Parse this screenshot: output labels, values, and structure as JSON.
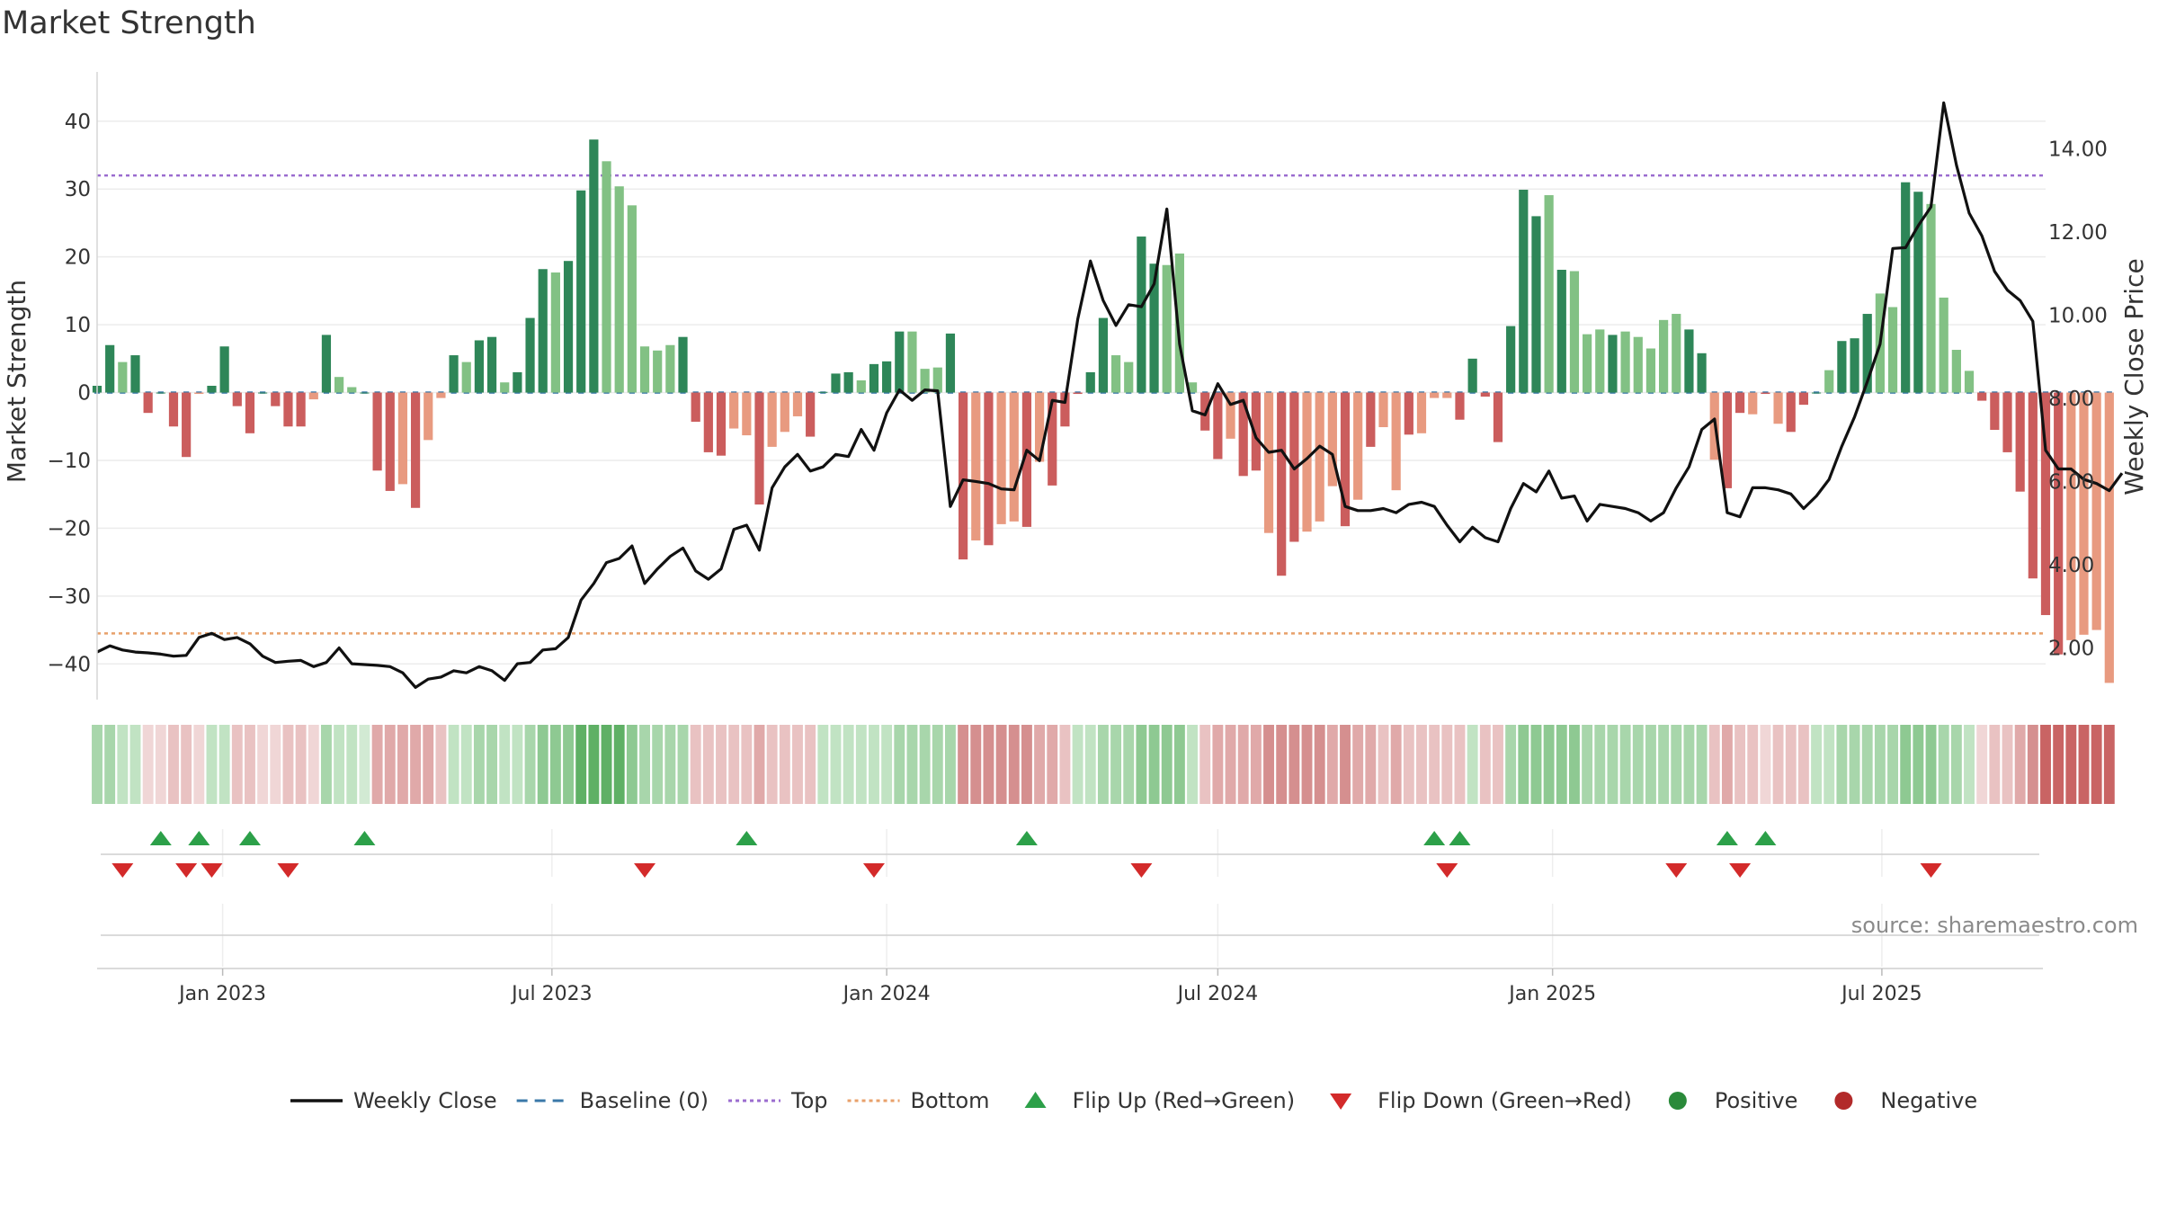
{
  "chart_data": {
    "type": "bar",
    "title": "Market Strength",
    "source": "source: sharemaestro.com",
    "x_type": "time",
    "x_ticks": [
      "Jan 2023",
      "Jul 2023",
      "Jan 2024",
      "Jul 2024",
      "Jan 2025",
      "Jul 2025"
    ],
    "x_tick_dates": [
      "2023-01-01",
      "2023-07-01",
      "2024-01-01",
      "2024-07-01",
      "2025-01-01",
      "2025-07-01"
    ],
    "x_range": [
      "2022-10-24",
      "2025-09-29"
    ],
    "ylabel_left": "Market Strength",
    "ylabel_right": "Weekly Close Price",
    "ylim_left": [
      -45,
      47
    ],
    "ylim_right": [
      0.8,
      15.8
    ],
    "yticks_left": [
      "40",
      "30",
      "20",
      "10",
      "0",
      "−10",
      "−20",
      "−30",
      "−40"
    ],
    "yticks_left_values": [
      40,
      30,
      20,
      10,
      0,
      -10,
      -20,
      -30,
      -40
    ],
    "yticks_right": [
      "14.00",
      "12.00",
      "10.00",
      "8.00",
      "6.00",
      "4.00",
      "2.00"
    ],
    "yticks_right_values": [
      14,
      12,
      10,
      8,
      6,
      4,
      2
    ],
    "grid": true,
    "top_level": 32,
    "bottom_level": -35.5,
    "baseline": 0,
    "week_start": "2022-10-24",
    "strength": [
      1,
      7,
      4.5,
      5.5,
      -3,
      0,
      -5,
      -9.5,
      -0.2,
      1,
      6.8,
      -2,
      -6,
      0,
      -2,
      -5,
      -5,
      -1,
      8.5,
      2.3,
      0.8,
      0,
      -11.5,
      -14.5,
      -13.5,
      -17,
      -7,
      -0.8,
      5.5,
      4.5,
      7.7,
      8.2,
      1.5,
      3,
      11,
      18.2,
      17.7,
      19.4,
      29.8,
      37.3,
      34.1,
      30.4,
      27.6,
      6.8,
      6.2,
      7,
      8.2,
      -4.3,
      -8.8,
      -9.3,
      -5.3,
      -6.3,
      -16.5,
      -8,
      -5.8,
      -3.5,
      -6.5,
      0.1,
      2.8,
      3,
      1.8,
      4.2,
      4.6,
      9,
      9,
      3.5,
      3.7,
      8.7,
      -24.6,
      -21.8,
      -22.5,
      -19.4,
      -19,
      -19.8,
      -10.2,
      -13.7,
      -5,
      -0.2,
      3,
      11,
      5.5,
      4.5,
      23,
      19,
      18.8,
      20.5,
      1.5,
      -5.6,
      -9.8,
      -6.8,
      -12.3,
      -11.5,
      -20.7,
      -27,
      -22,
      -20.5,
      -19,
      -13.8,
      -19.7,
      -15.8,
      -8,
      -5.1,
      -14.4,
      -6.2,
      -6,
      -0.8,
      -0.8,
      -4,
      5,
      -0.6,
      -7.3,
      9.8,
      29.9,
      26,
      29.1,
      18.1,
      17.9,
      8.6,
      9.3,
      8.5,
      9,
      8.2,
      6.5,
      10.7,
      11.6,
      9.3,
      5.8,
      -9.9,
      -14.1,
      -3,
      -3.2,
      -0.2,
      -4.6,
      -5.8,
      -1.8,
      0,
      3.3,
      7.6,
      8,
      11.6,
      14.6,
      12.6,
      31,
      29.6,
      27.8,
      14,
      6.3,
      3.2,
      -1.2,
      -5.5,
      -8.8,
      -14.6,
      -27.4,
      -32.8,
      -38.6,
      -36.5,
      -35.7,
      -35,
      -42.8
    ],
    "close": [
      1.9,
      2.05,
      1.95,
      1.9,
      1.88,
      1.85,
      1.8,
      1.82,
      2.25,
      2.35,
      2.2,
      2.25,
      2.1,
      1.8,
      1.65,
      1.68,
      1.7,
      1.55,
      1.65,
      2,
      1.62,
      1.6,
      1.58,
      1.55,
      1.4,
      1.05,
      1.25,
      1.3,
      1.45,
      1.4,
      1.55,
      1.45,
      1.22,
      1.62,
      1.65,
      1.95,
      1.98,
      2.25,
      3.15,
      3.55,
      4.05,
      4.15,
      4.45,
      3.55,
      3.9,
      4.2,
      4.4,
      3.85,
      3.65,
      3.9,
      4.85,
      4.95,
      4.35,
      5.85,
      6.35,
      6.65,
      6.25,
      6.35,
      6.65,
      6.6,
      7.25,
      6.75,
      7.65,
      8.2,
      7.95,
      8.2,
      8.18,
      5.4,
      6.04,
      6,
      5.95,
      5.82,
      5.8,
      6.75,
      6.5,
      7.95,
      7.9,
      9.9,
      11.3,
      10.35,
      9.75,
      10.25,
      10.2,
      10.75,
      12.55,
      9.3,
      7.7,
      7.6,
      8.35,
      7.85,
      7.95,
      7.05,
      6.7,
      6.75,
      6.3,
      6.55,
      6.85,
      6.65,
      5.4,
      5.3,
      5.3,
      5.35,
      5.25,
      5.45,
      5.5,
      5.4,
      4.95,
      4.55,
      4.9,
      4.65,
      4.55,
      5.35,
      5.95,
      5.75,
      6.25,
      5.6,
      5.65,
      5.05,
      5.45,
      5.4,
      5.35,
      5.25,
      5.05,
      5.25,
      5.85,
      6.35,
      7.25,
      7.5,
      5.25,
      5.15,
      5.85,
      5.85,
      5.8,
      5.7,
      5.35,
      5.65,
      6.05,
      6.85,
      7.55,
      8.4,
      9.3,
      11.6,
      11.62,
      12.15,
      12.6,
      15.1,
      13.6,
      12.45,
      11.9,
      11.05,
      10.6,
      10.35,
      9.85,
      6.75,
      6.3,
      6.3,
      6.05,
      5.95,
      5.78,
      6.2
    ],
    "bar_style": [
      3,
      3,
      2,
      3,
      3,
      3,
      3,
      3,
      2,
      3,
      3,
      3,
      3,
      3,
      3,
      3,
      3,
      1,
      3,
      2,
      2,
      3,
      3,
      3,
      1,
      3,
      1,
      1,
      3,
      2,
      3,
      3,
      2,
      3,
      3,
      3,
      2,
      3,
      3,
      3,
      2,
      2,
      2,
      2,
      2,
      2,
      3,
      3,
      3,
      3,
      1,
      1,
      3,
      1,
      1,
      1,
      3,
      3,
      3,
      3,
      2,
      3,
      3,
      3,
      2,
      2,
      2,
      3,
      3,
      1,
      3,
      1,
      1,
      3,
      1,
      3,
      3,
      3,
      3,
      3,
      2,
      2,
      3,
      3,
      2,
      2,
      2,
      3,
      3,
      1,
      3,
      3,
      1,
      3,
      3,
      1,
      1,
      1,
      3,
      1,
      3,
      1,
      1,
      3,
      1,
      1,
      1,
      3,
      3,
      3,
      3,
      3,
      3,
      3,
      2,
      3,
      2,
      2,
      2,
      3,
      2,
      2,
      2,
      2,
      2,
      3,
      3,
      2,
      3,
      3,
      1,
      3,
      1,
      3,
      3,
      3,
      2,
      3,
      3,
      3,
      2,
      2,
      3,
      3,
      2,
      2,
      2,
      2,
      3,
      3,
      3,
      3,
      3,
      3,
      3,
      1,
      1,
      1,
      1,
      3
    ],
    "state_strip": [
      3,
      3,
      2,
      2,
      -1,
      -1,
      -2,
      -2,
      -1,
      2,
      2,
      -2,
      -2,
      -1,
      -1,
      -2,
      -2,
      -1,
      3,
      2,
      2,
      1,
      -3,
      -3,
      -3,
      -3,
      -3,
      -2,
      2,
      2,
      3,
      3,
      2,
      2,
      3,
      4,
      4,
      4,
      5,
      5,
      5,
      5,
      4,
      3,
      3,
      3,
      3,
      -2,
      -2,
      -2,
      -2,
      -2,
      -3,
      -2,
      -2,
      -2,
      -2,
      2,
      2,
      2,
      2,
      2,
      2,
      3,
      3,
      3,
      3,
      3,
      -4,
      -4,
      -4,
      -4,
      -4,
      -4,
      -3,
      -3,
      -2,
      2,
      2,
      3,
      3,
      3,
      4,
      4,
      4,
      4,
      2,
      -2,
      -3,
      -3,
      -3,
      -3,
      -4,
      -4,
      -4,
      -4,
      -4,
      -3,
      -4,
      -3,
      -3,
      -2,
      -3,
      -2,
      -2,
      -2,
      -2,
      -2,
      2,
      -2,
      -2,
      3,
      4,
      4,
      4,
      4,
      4,
      3,
      3,
      3,
      3,
      3,
      3,
      3,
      3,
      3,
      3,
      -2,
      -3,
      -2,
      -2,
      -1,
      -2,
      -2,
      -2,
      2,
      2,
      3,
      3,
      3,
      3,
      3,
      4,
      4,
      4,
      3,
      3,
      2,
      -1,
      -2,
      -2,
      -3,
      -4,
      -5,
      -5,
      -5,
      -5,
      -5,
      -5
    ],
    "flip_up_dates": [
      "2022-11-28",
      "2022-12-19",
      "2023-01-16",
      "2023-03-20",
      "2023-10-16",
      "2024-03-18",
      "2024-10-28",
      "2024-11-11",
      "2025-04-07",
      "2025-04-28"
    ],
    "flip_down_dates": [
      "2022-11-07",
      "2022-12-12",
      "2022-12-26",
      "2023-02-06",
      "2023-08-21",
      "2023-12-25",
      "2024-05-20",
      "2024-11-04",
      "2025-03-10",
      "2025-04-14",
      "2025-07-28"
    ],
    "legend_position": "bottom-center",
    "legend": [
      {
        "label": "Weekly Close",
        "symbol": "line",
        "color": "#111111"
      },
      {
        "label": "Baseline (0)",
        "symbol": "dash",
        "color": "#3a78a8"
      },
      {
        "label": "Top",
        "symbol": "dot",
        "color": "#9b6ccf"
      },
      {
        "label": "Bottom",
        "symbol": "dot",
        "color": "#e8a06a"
      },
      {
        "label": "Flip Up (Red→Green)",
        "symbol": "triangle-up",
        "color": "#2ca049"
      },
      {
        "label": "Flip Down (Green→Red)",
        "symbol": "triangle-down",
        "color": "#d32a2a"
      },
      {
        "label": "Positive",
        "symbol": "circle",
        "color": "#2a8a3a"
      },
      {
        "label": "Negative",
        "symbol": "circle",
        "color": "#b22a2a"
      }
    ],
    "colors": {
      "green_strong": "#2e8658",
      "green_light": "#82c184",
      "red_strong": "#cb5d5d",
      "red_light": "#e89a80",
      "close_line": "#111111",
      "baseline": "#3a78a8",
      "top": "#9b6ccf",
      "bottom": "#e8a06a",
      "grid": "#ececec",
      "flip_up": "#2ca049",
      "flip_down": "#d32a2a"
    }
  }
}
